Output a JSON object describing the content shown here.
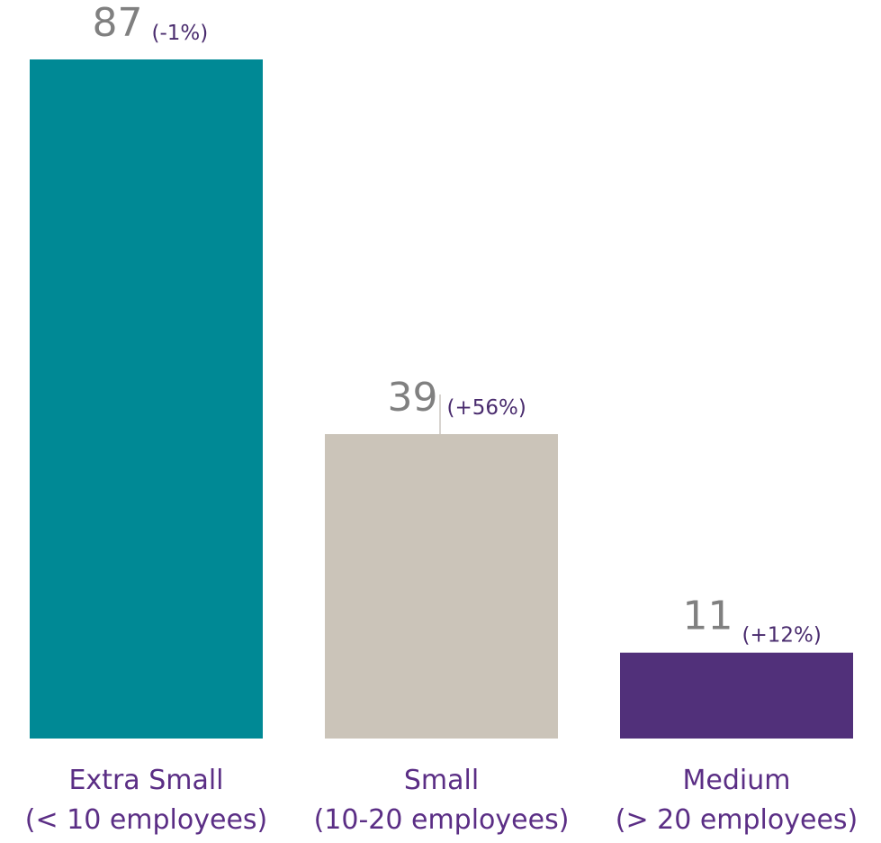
{
  "chart_data": {
    "type": "bar",
    "categories": [
      [
        "Extra Small",
        "(< 10 employees)"
      ],
      [
        "Small",
        "(10-20 employees)"
      ],
      [
        "Medium",
        "(> 20 employees)"
      ]
    ],
    "values": [
      87,
      39,
      11
    ],
    "change_labels": [
      "(-1%)",
      "(+56%)",
      "(+12%)"
    ],
    "colors": [
      "#008995",
      "#cbc4b9",
      "#51307a"
    ],
    "ylim": [
      0,
      87
    ]
  }
}
